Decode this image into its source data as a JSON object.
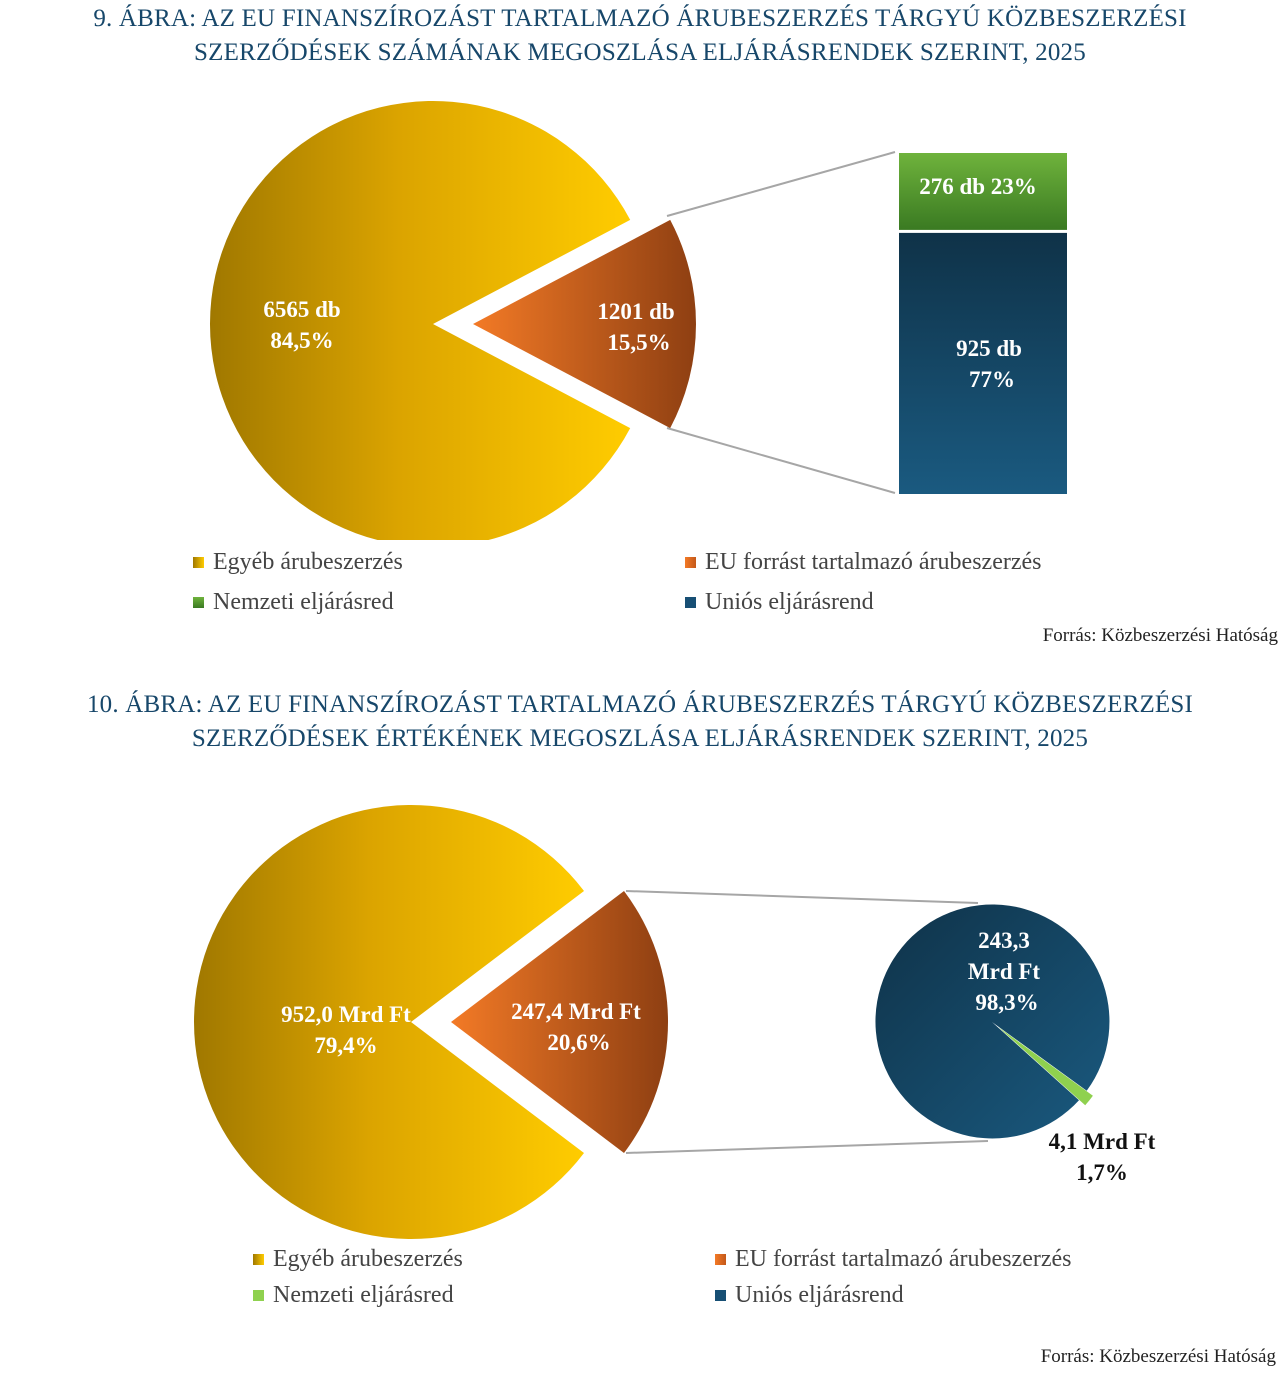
{
  "figure1": {
    "title_line1": "9. ÁBRA:  AZ EU FINANSZÍROZÁST TARTALMAZÓ ÁRUBESZERZÉS TÁRGYÚ KÖZBESZERZÉSI",
    "title_line2": "SZERZŐDÉSEK SZÁMÁNAK MEGOSZLÁSA ELJÁRÁSRENDEK SZERINT, 2025",
    "source": "Forrás: Közbeszerzési Hatóság"
  },
  "figure2": {
    "title_line1": "10. ÁBRA: AZ EU FINANSZÍROZÁST TARTALMAZÓ ÁRUBESZERZÉS TÁRGYÚ KÖZBESZERZÉSI",
    "title_line2": "SZERZŐDÉSEK ÉRTÉKÉNEK MEGOSZLÁSA ELJÁRÁSRENDEK SZERINT, 2025",
    "source": "Forrás: Közbeszerzési Hatóság"
  },
  "legend": {
    "egyeb": "Egyéb árubeszerzés",
    "eu": "EU forrást tartalmazó árubeszerzés",
    "nemzeti": "Nemzeti eljárásred",
    "unios": "Uniós eljárásrend"
  },
  "colors": {
    "egyeb": "#e8b000",
    "eu": "#d9661f",
    "nemzeti_fig1": "#4f9a30",
    "nemzeti_fig2": "#8fd14f",
    "unios": "#174f74",
    "title": "#17476a"
  },
  "chart_data": [
    {
      "type": "pie",
      "subtype": "pie-of-bar",
      "slices": [
        {
          "key": "egyeb",
          "value": 6565,
          "percent": 84.5,
          "label_value": "6565 db",
          "label_percent": "84,5%"
        },
        {
          "key": "eu",
          "value": 1201,
          "percent": 15.5,
          "label_value": "1201 db",
          "label_percent": "15,5%"
        }
      ],
      "breakdown": [
        {
          "key": "nemzeti",
          "value": 276,
          "percent": 23,
          "label": "276 db 23%"
        },
        {
          "key": "unios",
          "value": 925,
          "percent": 77,
          "label_value": "925 db",
          "label_percent": "77%"
        }
      ],
      "unit": "db",
      "legend_position": "bottom"
    },
    {
      "type": "pie",
      "subtype": "pie-of-pie",
      "slices": [
        {
          "key": "egyeb",
          "value": 952.0,
          "percent": 79.4,
          "label_value": "952,0 Mrd Ft",
          "label_percent": "79,4%"
        },
        {
          "key": "eu",
          "value": 247.4,
          "percent": 20.6,
          "label_value": "247,4 Mrd Ft",
          "label_percent": "20,6%"
        }
      ],
      "breakdown": [
        {
          "key": "unios",
          "value": 243.3,
          "percent": 98.3,
          "label_line1": "243,3",
          "label_line2": "Mrd Ft",
          "label_percent": "98,3%"
        },
        {
          "key": "nemzeti",
          "value": 4.1,
          "percent": 1.7,
          "label_value": "4,1 Mrd Ft",
          "label_percent": "1,7%"
        }
      ],
      "unit": "Mrd Ft",
      "legend_position": "bottom"
    }
  ]
}
